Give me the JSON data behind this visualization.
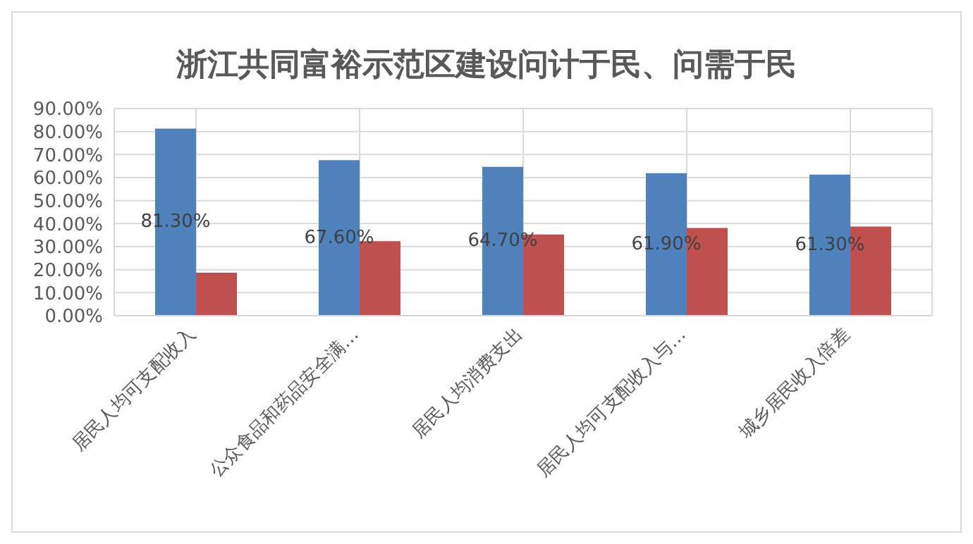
{
  "chart_data": {
    "type": "bar",
    "title": "浙江共同富裕示范区建设问计于民、问需于民",
    "categories": [
      "居民人均可支配收入",
      "公众食品和药品安全满…",
      "居民人均消费支出",
      "居民人均可支配收入与…",
      "城乡居民收入倍差"
    ],
    "series": [
      {
        "color": "#4f81bd",
        "values": [
          81.3,
          67.6,
          64.7,
          61.9,
          61.3
        ],
        "value_labels": [
          "81.30%",
          "67.60%",
          "64.70%",
          "61.90%",
          "61.30%"
        ]
      },
      {
        "color": "#c0504d",
        "values": [
          18.7,
          32.4,
          35.3,
          38.1,
          38.7
        ]
      }
    ],
    "ylim": [
      0,
      90
    ],
    "yticks": [
      {
        "value": 0,
        "label": "0.00%"
      },
      {
        "value": 10,
        "label": "10.00%"
      },
      {
        "value": 20,
        "label": "20.00%"
      },
      {
        "value": 30,
        "label": "30.00%"
      },
      {
        "value": 40,
        "label": "40.00%"
      },
      {
        "value": 50,
        "label": "50.00%"
      },
      {
        "value": 60,
        "label": "60.00%"
      },
      {
        "value": 70,
        "label": "70.00%"
      },
      {
        "value": 80,
        "label": "80.00%"
      },
      {
        "value": 90,
        "label": "90.00%"
      }
    ],
    "grid": true,
    "legend": false
  }
}
